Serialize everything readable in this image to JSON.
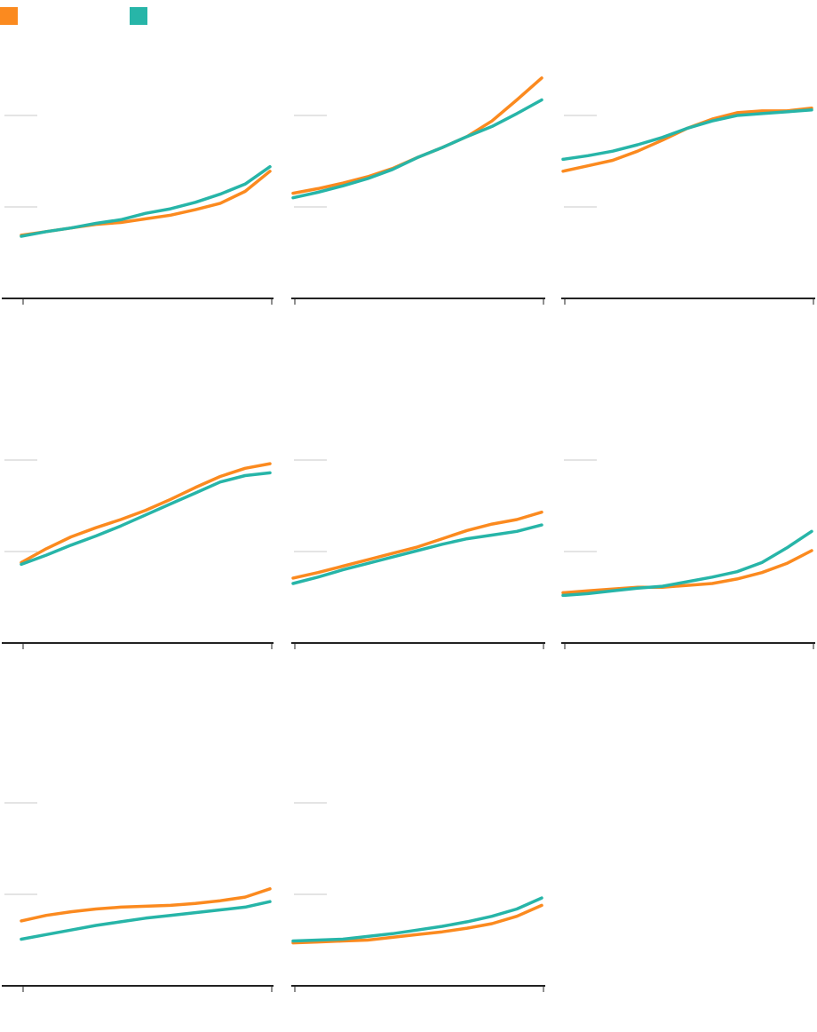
{
  "chart_data": [
    {
      "type": "line",
      "x": [
        0,
        1,
        2,
        3,
        4,
        5,
        6,
        7,
        8,
        9,
        10
      ],
      "xlim": [
        0,
        10
      ],
      "xticks": [
        0,
        10
      ],
      "ylim": [
        0,
        3
      ],
      "yticks": [
        1,
        2
      ],
      "grid": true,
      "series": [
        {
          "color": "#fb8a1f",
          "values": [
            0.69,
            0.73,
            0.77,
            0.81,
            0.83,
            0.87,
            0.91,
            0.97,
            1.04,
            1.17,
            1.39
          ]
        },
        {
          "color": "#27b5a8",
          "values": [
            0.68,
            0.73,
            0.77,
            0.82,
            0.86,
            0.93,
            0.98,
            1.05,
            1.14,
            1.25,
            1.44
          ]
        }
      ]
    },
    {
      "type": "line",
      "x": [
        0,
        1,
        2,
        3,
        4,
        5,
        6,
        7,
        8,
        9,
        10
      ],
      "xlim": [
        0,
        10
      ],
      "xticks": [
        0,
        10
      ],
      "ylim": [
        0,
        3
      ],
      "yticks": [
        1,
        2
      ],
      "grid": true,
      "series": [
        {
          "color": "#fb8a1f",
          "values": [
            1.15,
            1.2,
            1.26,
            1.33,
            1.42,
            1.54,
            1.65,
            1.77,
            1.94,
            2.17,
            2.41
          ]
        },
        {
          "color": "#27b5a8",
          "values": [
            1.1,
            1.16,
            1.23,
            1.31,
            1.41,
            1.54,
            1.65,
            1.77,
            1.88,
            2.02,
            2.17
          ]
        }
      ]
    },
    {
      "type": "line",
      "x": [
        0,
        1,
        2,
        3,
        4,
        5,
        6,
        7,
        8,
        9,
        10
      ],
      "xlim": [
        0,
        10
      ],
      "xticks": [
        0,
        10
      ],
      "ylim": [
        0,
        3
      ],
      "yticks": [
        1,
        2
      ],
      "grid": true,
      "series": [
        {
          "color": "#fb8a1f",
          "values": [
            1.39,
            1.45,
            1.51,
            1.61,
            1.73,
            1.86,
            1.96,
            2.03,
            2.05,
            2.05,
            2.08
          ]
        },
        {
          "color": "#27b5a8",
          "values": [
            1.52,
            1.56,
            1.61,
            1.68,
            1.76,
            1.86,
            1.94,
            2.0,
            2.02,
            2.04,
            2.06
          ]
        }
      ]
    },
    {
      "type": "line",
      "x": [
        0,
        1,
        2,
        3,
        4,
        5,
        6,
        7,
        8,
        9,
        10
      ],
      "xlim": [
        0,
        10
      ],
      "xticks": [
        0,
        10
      ],
      "ylim": [
        0,
        3
      ],
      "yticks": [
        1,
        2
      ],
      "grid": true,
      "series": [
        {
          "color": "#fb8a1f",
          "values": [
            0.88,
            1.03,
            1.16,
            1.26,
            1.35,
            1.45,
            1.57,
            1.7,
            1.82,
            1.91,
            1.96
          ]
        },
        {
          "color": "#27b5a8",
          "values": [
            0.86,
            0.96,
            1.07,
            1.17,
            1.28,
            1.4,
            1.52,
            1.64,
            1.76,
            1.83,
            1.86
          ]
        }
      ]
    },
    {
      "type": "line",
      "x": [
        0,
        1,
        2,
        3,
        4,
        5,
        6,
        7,
        8,
        9,
        10
      ],
      "xlim": [
        0,
        10
      ],
      "xticks": [
        0,
        10
      ],
      "ylim": [
        0,
        3
      ],
      "yticks": [
        1,
        2
      ],
      "grid": true,
      "series": [
        {
          "color": "#fb8a1f",
          "values": [
            0.71,
            0.77,
            0.84,
            0.91,
            0.98,
            1.05,
            1.14,
            1.23,
            1.3,
            1.35,
            1.43
          ]
        },
        {
          "color": "#27b5a8",
          "values": [
            0.65,
            0.72,
            0.8,
            0.87,
            0.94,
            1.01,
            1.08,
            1.14,
            1.18,
            1.22,
            1.29
          ]
        }
      ]
    },
    {
      "type": "line",
      "x": [
        0,
        1,
        2,
        3,
        4,
        5,
        6,
        7,
        8,
        9,
        10
      ],
      "xlim": [
        0,
        10
      ],
      "xticks": [
        0,
        10
      ],
      "ylim": [
        0,
        3
      ],
      "yticks": [
        1,
        2
      ],
      "grid": true,
      "series": [
        {
          "color": "#fb8a1f",
          "values": [
            0.55,
            0.57,
            0.59,
            0.61,
            0.61,
            0.63,
            0.65,
            0.7,
            0.77,
            0.87,
            1.01
          ]
        },
        {
          "color": "#27b5a8",
          "values": [
            0.52,
            0.54,
            0.57,
            0.6,
            0.62,
            0.67,
            0.72,
            0.78,
            0.88,
            1.04,
            1.22
          ]
        }
      ]
    },
    {
      "type": "line",
      "x": [
        0,
        1,
        2,
        3,
        4,
        5,
        6,
        7,
        8,
        9,
        10
      ],
      "xlim": [
        0,
        10
      ],
      "xticks": [
        0,
        10
      ],
      "ylim": [
        0,
        3
      ],
      "yticks": [
        1,
        2
      ],
      "grid": true,
      "series": [
        {
          "color": "#fb8a1f",
          "values": [
            0.71,
            0.77,
            0.81,
            0.84,
            0.86,
            0.87,
            0.88,
            0.9,
            0.93,
            0.97,
            1.06
          ]
        },
        {
          "color": "#27b5a8",
          "values": [
            0.51,
            0.56,
            0.61,
            0.66,
            0.7,
            0.74,
            0.77,
            0.8,
            0.83,
            0.86,
            0.92
          ]
        }
      ]
    },
    {
      "type": "line",
      "x": [
        0,
        1,
        2,
        3,
        4,
        5,
        6,
        7,
        8,
        9,
        10
      ],
      "xlim": [
        0,
        10
      ],
      "xticks": [
        0,
        10
      ],
      "ylim": [
        0,
        3
      ],
      "yticks": [
        1,
        2
      ],
      "grid": true,
      "series": [
        {
          "color": "#fb8a1f",
          "values": [
            0.47,
            0.48,
            0.49,
            0.5,
            0.53,
            0.56,
            0.59,
            0.63,
            0.68,
            0.76,
            0.88
          ]
        },
        {
          "color": "#27b5a8",
          "values": [
            0.49,
            0.5,
            0.51,
            0.54,
            0.57,
            0.61,
            0.65,
            0.7,
            0.76,
            0.84,
            0.96
          ]
        }
      ]
    }
  ]
}
